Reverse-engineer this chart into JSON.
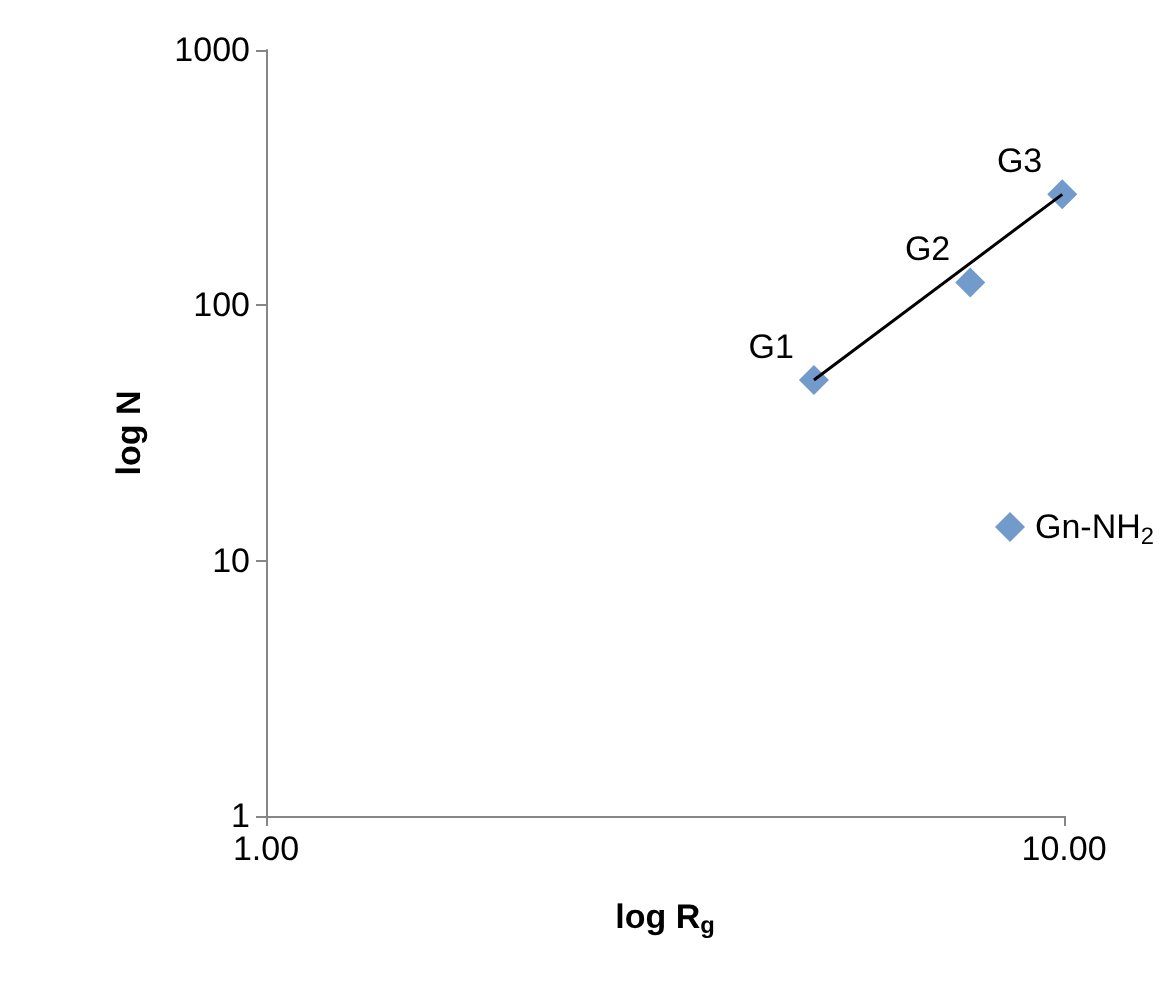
{
  "chart_data": {
    "type": "scatter",
    "xlabel": "log R$_{g}$",
    "ylabel": "log N",
    "log": "xy",
    "xlim": [
      1,
      10
    ],
    "ylim": [
      1,
      1000
    ],
    "xticks": [
      {
        "value": 1,
        "label": "1.00"
      },
      {
        "value": 10,
        "label": "10.00"
      }
    ],
    "yticks": [
      1,
      10,
      100,
      1000
    ],
    "grid": false,
    "legend": "right",
    "marker": "diamond",
    "series": [
      {
        "name": "Gn-NH$_{2}$",
        "color": "#4f81bd",
        "x": [
          4.86,
          7.63,
          9.95
        ],
        "values": [
          51,
          123,
          272
        ]
      },
      {
        "type": "line",
        "color": "#000000",
        "x": [
          4.86,
          9.95
        ],
        "values": [
          51,
          272
        ],
        "marker": "none",
        "line_style": "solid"
      }
    ],
    "annotations": [
      {
        "text": "G1",
        "x": 4.86,
        "y": 51
      },
      {
        "text": "G2",
        "x": 7.63,
        "y": 123
      },
      {
        "text": "G3",
        "x": 9.95,
        "y": 272
      }
    ]
  }
}
